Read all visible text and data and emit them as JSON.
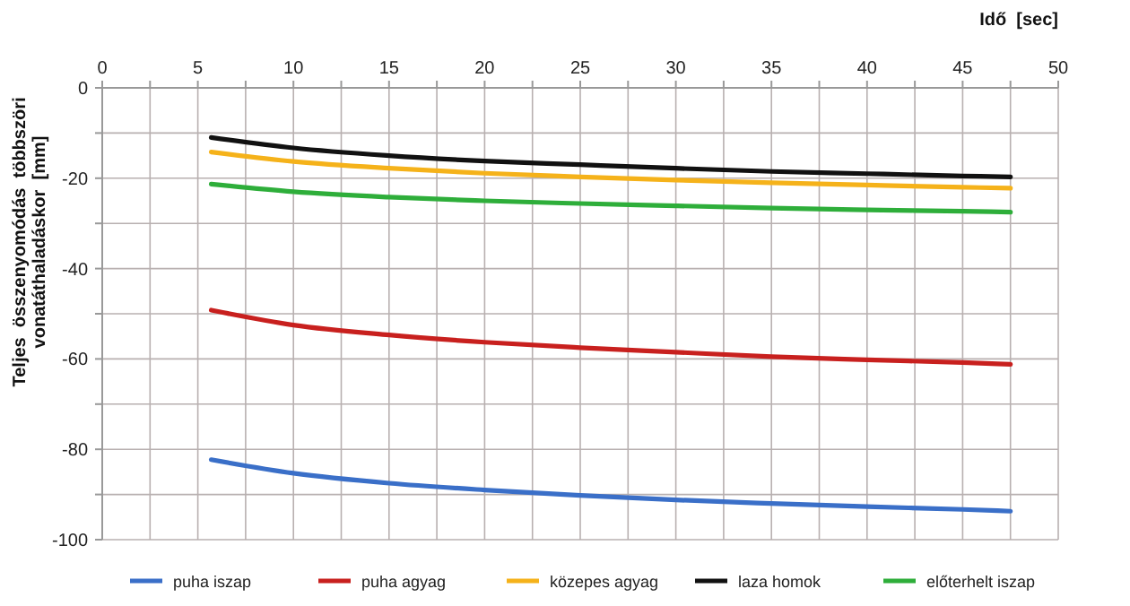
{
  "chart_data": {
    "type": "line",
    "xlabel": "Idő  [sec]",
    "ylabel": "Teljes  összenyomódás  többszöri\nvonatáthaladáskor  [mm]",
    "x": [
      5.7,
      10,
      15,
      20,
      25,
      30,
      35,
      40,
      45,
      47.5
    ],
    "xlim": [
      0,
      50
    ],
    "xticks": [
      0,
      {
        "value": 2.5,
        "label": null
      },
      5,
      {
        "value": 7.5,
        "label": null
      },
      10,
      {
        "value": 12.5,
        "label": null
      },
      15,
      {
        "value": 17.5,
        "label": null
      },
      20,
      {
        "value": 22.5,
        "label": null
      },
      25,
      {
        "value": 27.5,
        "label": null
      },
      30,
      {
        "value": 32.5,
        "label": null
      },
      35,
      {
        "value": 37.5,
        "label": null
      },
      40,
      {
        "value": 42.5,
        "label": null
      },
      45,
      {
        "value": 47.5,
        "label": null
      },
      50
    ],
    "ylim": [
      -100,
      0
    ],
    "yticks": [
      0,
      {
        "value": -10,
        "label": null
      },
      -20,
      {
        "value": -30,
        "label": null
      },
      -40,
      {
        "value": -50,
        "label": null
      },
      -60,
      {
        "value": -70,
        "label": null
      },
      -80,
      {
        "value": -90,
        "label": null
      },
      -100
    ],
    "grid": true,
    "legend": "bottom",
    "marker": "none",
    "line_style": "solid",
    "series": [
      {
        "name": "puha iszap",
        "color": "#3a6fc8",
        "values": [
          -82.3,
          -85.3,
          -87.5,
          -89,
          -90.2,
          -91.2,
          -92,
          -92.7,
          -93.3,
          -93.7
        ]
      },
      {
        "name": "puha agyag",
        "color": "#c8201e",
        "values": [
          -49.2,
          -52.5,
          -54.7,
          -56.3,
          -57.5,
          -58.5,
          -59.5,
          -60.2,
          -60.8,
          -61.2
        ]
      },
      {
        "name": "közepes agyag",
        "color": "#f5b21a",
        "values": [
          -14.2,
          -16.3,
          -17.8,
          -18.9,
          -19.7,
          -20.4,
          -21,
          -21.5,
          -22,
          -22.2
        ]
      },
      {
        "name": "laza homok",
        "color": "#111111",
        "values": [
          -11,
          -13.3,
          -15,
          -16.2,
          -17,
          -17.8,
          -18.5,
          -19,
          -19.5,
          -19.7
        ]
      },
      {
        "name": "előterhelt iszap",
        "color": "#2eae3a",
        "values": [
          -21.3,
          -23,
          -24.2,
          -25,
          -25.6,
          -26.1,
          -26.6,
          -27,
          -27.3,
          -27.5
        ]
      }
    ]
  }
}
